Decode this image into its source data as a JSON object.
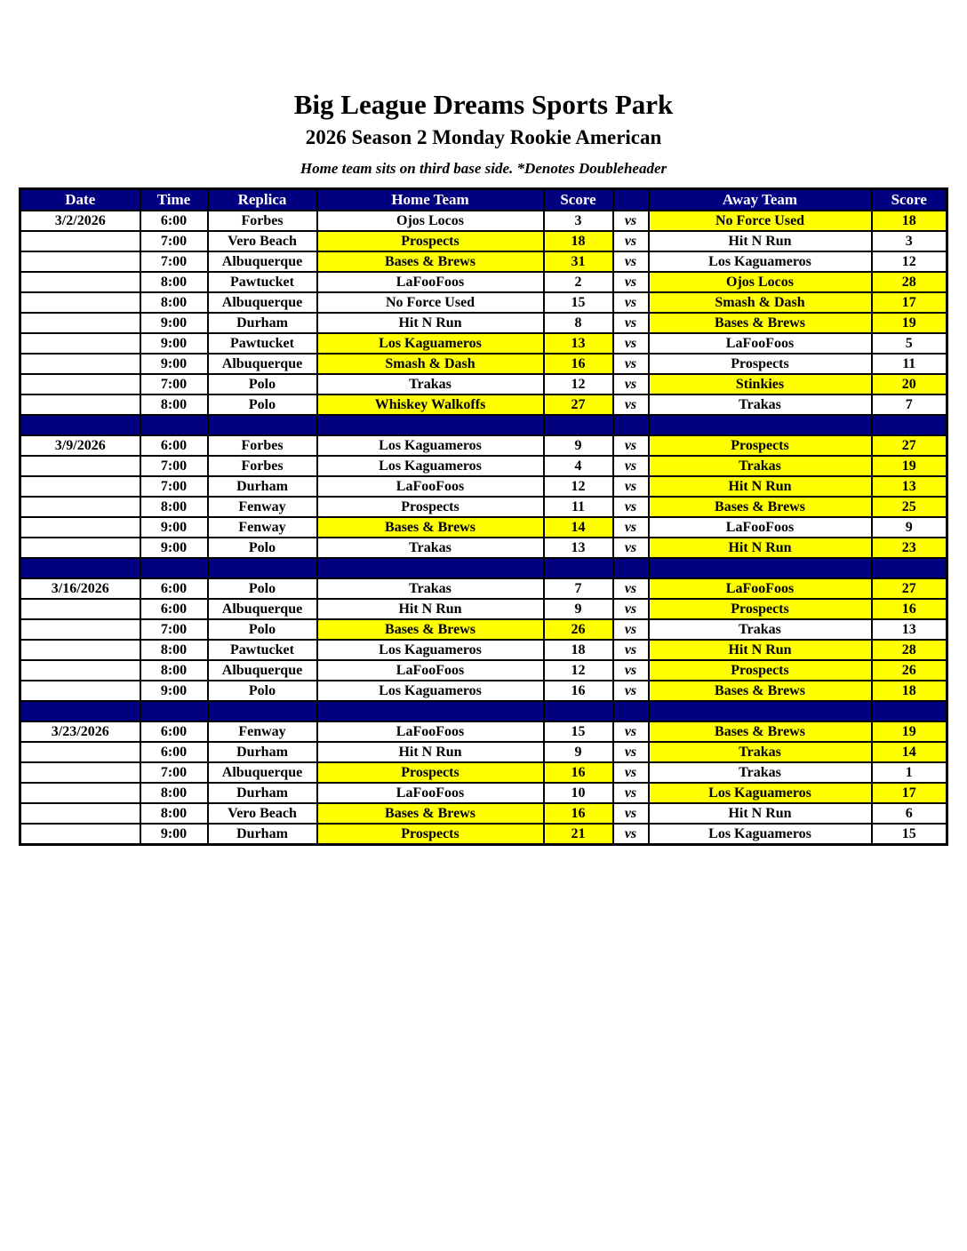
{
  "page": {
    "title": "Big League Dreams Sports Park",
    "subtitle": "2026 Season 2 Monday Rookie American",
    "note": "Home team sits on third base side.  *Denotes Doubleheader"
  },
  "colors": {
    "header_bg": "#000080",
    "separator_bg": "#000080",
    "winner_highlight": "#FFFF00",
    "header_text": "#FFFFFF",
    "body_text": "#000000"
  },
  "table": {
    "headers": [
      "Date",
      "Time",
      "Replica",
      "Home Team",
      "Score",
      "",
      "Away Team",
      "Score"
    ],
    "vs_label": "vs",
    "blocks": [
      {
        "date": "3/2/2026",
        "games": [
          {
            "time": "6:00",
            "replica": "Forbes",
            "home": "Ojos Locos",
            "home_score": "3",
            "away": "No Force Used",
            "away_score": "18",
            "winner": "away"
          },
          {
            "time": "7:00",
            "replica": "Vero Beach",
            "home": "Prospects",
            "home_score": "18",
            "away": "Hit N Run",
            "away_score": "3",
            "winner": "home"
          },
          {
            "time": "7:00",
            "replica": "Albuquerque",
            "home": "Bases & Brews",
            "home_score": "31",
            "away": "Los Kaguameros",
            "away_score": "12",
            "winner": "home"
          },
          {
            "time": "8:00",
            "replica": "Pawtucket",
            "home": "LaFooFoos",
            "home_score": "2",
            "away": "Ojos Locos",
            "away_score": "28",
            "winner": "away"
          },
          {
            "time": "8:00",
            "replica": "Albuquerque",
            "home": "No Force Used",
            "home_score": "15",
            "away": "Smash & Dash",
            "away_score": "17",
            "winner": "away"
          },
          {
            "time": "9:00",
            "replica": "Durham",
            "home": "Hit N Run",
            "home_score": "8",
            "away": "Bases & Brews",
            "away_score": "19",
            "winner": "away"
          },
          {
            "time": "9:00",
            "replica": "Pawtucket",
            "home": "Los Kaguameros",
            "home_score": "13",
            "away": "LaFooFoos",
            "away_score": "5",
            "winner": "home"
          },
          {
            "time": "9:00",
            "replica": "Albuquerque",
            "home": "Smash & Dash",
            "home_score": "16",
            "away": "Prospects",
            "away_score": "11",
            "winner": "home"
          },
          {
            "time": "7:00",
            "replica": "Polo",
            "home": "Trakas",
            "home_score": "12",
            "away": "Stinkies",
            "away_score": "20",
            "winner": "away"
          },
          {
            "time": "8:00",
            "replica": "Polo",
            "home": "Whiskey Walkoffs",
            "home_score": "27",
            "away": "Trakas",
            "away_score": "7",
            "winner": "home"
          }
        ]
      },
      {
        "date": "3/9/2026",
        "games": [
          {
            "time": "6:00",
            "replica": "Forbes",
            "home": "Los Kaguameros",
            "home_score": "9",
            "away": "Prospects",
            "away_score": "27",
            "winner": "away"
          },
          {
            "time": "7:00",
            "replica": "Forbes",
            "home": "Los Kaguameros",
            "home_score": "4",
            "away": "Trakas",
            "away_score": "19",
            "winner": "away"
          },
          {
            "time": "7:00",
            "replica": "Durham",
            "home": "LaFooFoos",
            "home_score": "12",
            "away": "Hit N Run",
            "away_score": "13",
            "winner": "away"
          },
          {
            "time": "8:00",
            "replica": "Fenway",
            "home": "Prospects",
            "home_score": "11",
            "away": "Bases & Brews",
            "away_score": "25",
            "winner": "away"
          },
          {
            "time": "9:00",
            "replica": "Fenway",
            "home": "Bases & Brews",
            "home_score": "14",
            "away": "LaFooFoos",
            "away_score": "9",
            "winner": "home"
          },
          {
            "time": "9:00",
            "replica": "Polo",
            "home": "Trakas",
            "home_score": "13",
            "away": "Hit N Run",
            "away_score": "23",
            "winner": "away"
          }
        ]
      },
      {
        "date": "3/16/2026",
        "games": [
          {
            "time": "6:00",
            "replica": "Polo",
            "home": "Trakas",
            "home_score": "7",
            "away": "LaFooFoos",
            "away_score": "27",
            "winner": "away"
          },
          {
            "time": "6:00",
            "replica": "Albuquerque",
            "home": "Hit N Run",
            "home_score": "9",
            "away": "Prospects",
            "away_score": "16",
            "winner": "away"
          },
          {
            "time": "7:00",
            "replica": "Polo",
            "home": "Bases & Brews",
            "home_score": "26",
            "away": "Trakas",
            "away_score": "13",
            "winner": "home"
          },
          {
            "time": "8:00",
            "replica": "Pawtucket",
            "home": "Los Kaguameros",
            "home_score": "18",
            "away": "Hit N Run",
            "away_score": "28",
            "winner": "away"
          },
          {
            "time": "8:00",
            "replica": "Albuquerque",
            "home": "LaFooFoos",
            "home_score": "12",
            "away": "Prospects",
            "away_score": "26",
            "winner": "away"
          },
          {
            "time": "9:00",
            "replica": "Polo",
            "home": "Los Kaguameros",
            "home_score": "16",
            "away": "Bases & Brews",
            "away_score": "18",
            "winner": "away"
          }
        ]
      },
      {
        "date": "3/23/2026",
        "games": [
          {
            "time": "6:00",
            "replica": "Fenway",
            "home": "LaFooFoos",
            "home_score": "15",
            "away": "Bases & Brews",
            "away_score": "19",
            "winner": "away"
          },
          {
            "time": "6:00",
            "replica": "Durham",
            "home": "Hit N Run",
            "home_score": "9",
            "away": "Trakas",
            "away_score": "14",
            "winner": "away"
          },
          {
            "time": "7:00",
            "replica": "Albuquerque",
            "home": "Prospects",
            "home_score": "16",
            "away": "Trakas",
            "away_score": "1",
            "winner": "home"
          },
          {
            "time": "8:00",
            "replica": "Durham",
            "home": "LaFooFoos",
            "home_score": "10",
            "away": "Los Kaguameros",
            "away_score": "17",
            "winner": "away"
          },
          {
            "time": "8:00",
            "replica": "Vero Beach",
            "home": "Bases & Brews",
            "home_score": "16",
            "away": "Hit N Run",
            "away_score": "6",
            "winner": "home"
          },
          {
            "time": "9:00",
            "replica": "Durham",
            "home": "Prospects",
            "home_score": "21",
            "away": "Los Kaguameros",
            "away_score": "15",
            "winner": "home"
          }
        ]
      }
    ]
  }
}
